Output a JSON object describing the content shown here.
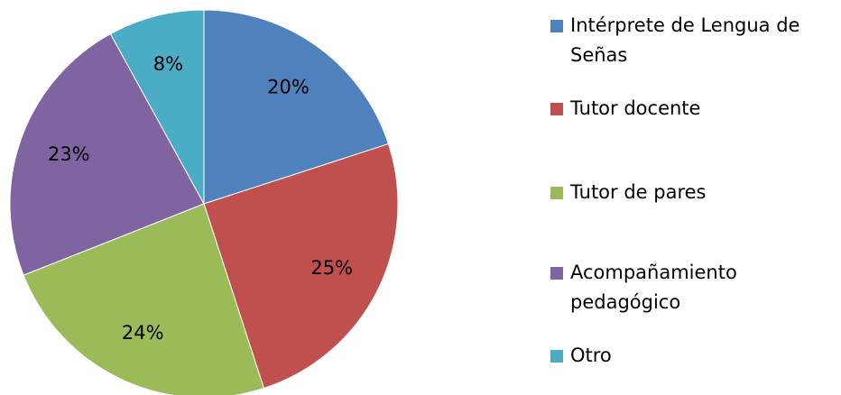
{
  "chart_data": {
    "type": "pie",
    "categories": [
      "Intérprete de Lengua de Señas",
      "Tutor docente",
      "Tutor de pares",
      "Acompañamiento pedagógico",
      "Otro"
    ],
    "values": [
      20,
      25,
      24,
      23,
      8
    ],
    "value_labels": [
      "20%",
      "25%",
      "24%",
      "23%",
      "8%"
    ],
    "colors": [
      "#4f81bd",
      "#c0504d",
      "#9bbb59",
      "#8064a2",
      "#4bacc6"
    ],
    "legend": "right"
  }
}
